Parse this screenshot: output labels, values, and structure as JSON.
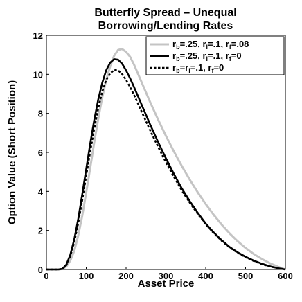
{
  "chart_data": {
    "type": "line",
    "title": "Butterfly Spread – Unequal Borrowing/Lending Rates",
    "title_lines": [
      "Butterfly Spread – Unequal",
      "Borrowing/Lending Rates"
    ],
    "xlabel": "Asset Price",
    "ylabel": "Option Value (Short Position)",
    "xlim": [
      0,
      600
    ],
    "ylim": [
      0,
      12
    ],
    "xticks": [
      0,
      100,
      200,
      300,
      400,
      500,
      600
    ],
    "yticks": [
      0,
      2,
      4,
      6,
      8,
      10,
      12
    ],
    "grid": false,
    "legend_position": "top-right",
    "series": [
      {
        "name": "r_b=.25, r_l=.1, r_f=.08",
        "legend": [
          {
            "t": "r",
            "sub": false
          },
          {
            "t": "b",
            "sub": true
          },
          {
            "t": "=.25, r",
            "sub": false
          },
          {
            "t": "l",
            "sub": true
          },
          {
            "t": "=.1, r",
            "sub": false
          },
          {
            "t": "f",
            "sub": true
          },
          {
            "t": "=.08",
            "sub": false
          }
        ],
        "color": "#c4c4c4",
        "dash": "solid",
        "x": [
          0,
          30,
          40,
          50,
          60,
          70,
          80,
          90,
          100,
          110,
          120,
          130,
          140,
          150,
          160,
          170,
          180,
          190,
          200,
          210,
          220,
          240,
          260,
          280,
          300,
          320,
          340,
          360,
          380,
          400,
          420,
          440,
          460,
          480,
          500,
          520,
          540,
          560,
          580,
          600
        ],
        "y": [
          0,
          0,
          0.02,
          0.15,
          0.45,
          0.95,
          1.75,
          2.75,
          3.95,
          5.2,
          6.5,
          7.7,
          8.8,
          9.7,
          10.4,
          10.95,
          11.25,
          11.3,
          11.15,
          10.9,
          10.5,
          9.55,
          8.6,
          7.7,
          6.85,
          6.05,
          5.3,
          4.6,
          3.95,
          3.35,
          2.8,
          2.3,
          1.85,
          1.45,
          1.1,
          0.8,
          0.55,
          0.33,
          0.15,
          0
        ]
      },
      {
        "name": "r_b=.25, r_l=.1, r_f=0",
        "legend": [
          {
            "t": "r",
            "sub": false
          },
          {
            "t": "b",
            "sub": true
          },
          {
            "t": "=.25, r",
            "sub": false
          },
          {
            "t": "l",
            "sub": true
          },
          {
            "t": "=.1, r",
            "sub": false
          },
          {
            "t": "f",
            "sub": true
          },
          {
            "t": "=0",
            "sub": false
          }
        ],
        "color": "#000000",
        "dash": "solid",
        "x": [
          0,
          30,
          40,
          50,
          60,
          70,
          80,
          90,
          100,
          110,
          120,
          130,
          140,
          150,
          160,
          170,
          180,
          190,
          200,
          210,
          220,
          240,
          260,
          280,
          300,
          320,
          340,
          360,
          380,
          400,
          420,
          440,
          460,
          480,
          500,
          520,
          540,
          560,
          580,
          600
        ],
        "y": [
          0,
          0,
          0.03,
          0.25,
          0.75,
          1.55,
          2.6,
          3.85,
          5.15,
          6.45,
          7.65,
          8.7,
          9.55,
          10.2,
          10.6,
          10.78,
          10.75,
          10.55,
          10.2,
          9.8,
          9.35,
          8.4,
          7.45,
          6.55,
          5.7,
          4.9,
          4.15,
          3.5,
          2.9,
          2.35,
          1.9,
          1.5,
          1.15,
          0.88,
          0.65,
          0.46,
          0.3,
          0.17,
          0.07,
          0
        ]
      },
      {
        "name": "r_b=r_l=.1, r_f=0",
        "legend": [
          {
            "t": "r",
            "sub": false
          },
          {
            "t": "b",
            "sub": true
          },
          {
            "t": "=r",
            "sub": false
          },
          {
            "t": "l",
            "sub": true
          },
          {
            "t": "=.1, r",
            "sub": false
          },
          {
            "t": "f",
            "sub": true
          },
          {
            "t": "=0",
            "sub": false
          }
        ],
        "color": "#000000",
        "dash": "dashed",
        "x": [
          0,
          30,
          40,
          50,
          60,
          70,
          80,
          90,
          100,
          110,
          120,
          130,
          140,
          150,
          160,
          170,
          180,
          190,
          200,
          210,
          220,
          240,
          260,
          280,
          300,
          320,
          340,
          360,
          380,
          400,
          420,
          440,
          460,
          480,
          500,
          520,
          540,
          560,
          580,
          600
        ],
        "y": [
          0,
          0,
          0.03,
          0.22,
          0.68,
          1.4,
          2.38,
          3.55,
          4.8,
          6.05,
          7.2,
          8.25,
          9.1,
          9.7,
          10.05,
          10.22,
          10.2,
          10.02,
          9.72,
          9.35,
          8.95,
          8.05,
          7.15,
          6.3,
          5.5,
          4.75,
          4.05,
          3.42,
          2.85,
          2.32,
          1.87,
          1.47,
          1.13,
          0.86,
          0.63,
          0.44,
          0.28,
          0.16,
          0.07,
          0
        ]
      }
    ]
  }
}
